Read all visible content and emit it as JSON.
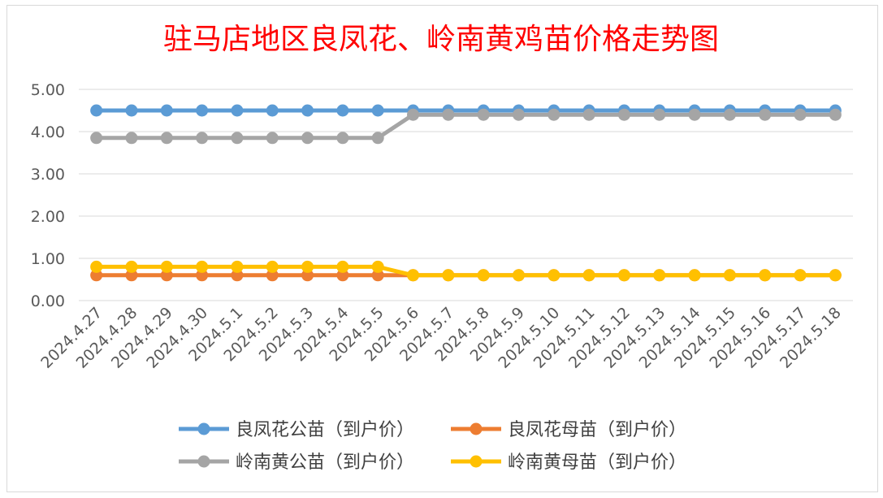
{
  "chart_data": {
    "type": "line",
    "title": "驻马店地区良凤花、岭南黄鸡苗价格走势图",
    "categories": [
      "2024.4.27",
      "2024.4.28",
      "2024.4.29",
      "2024.4.30",
      "2024.5.1",
      "2024.5.2",
      "2024.5.3",
      "2024.5.4",
      "2024.5.5",
      "2024.5.6",
      "2024.5.7",
      "2024.5.8",
      "2024.5.9",
      "2024.5.10",
      "2024.5.11",
      "2024.5.12",
      "2024.5.13",
      "2024.5.14",
      "2024.5.15",
      "2024.5.16",
      "2024.5.17",
      "2024.5.18"
    ],
    "series": [
      {
        "name": "良凤花公苗（到户价）",
        "color": "#5b9bd5",
        "values": [
          4.5,
          4.5,
          4.5,
          4.5,
          4.5,
          4.5,
          4.5,
          4.5,
          4.5,
          4.5,
          4.5,
          4.5,
          4.5,
          4.5,
          4.5,
          4.5,
          4.5,
          4.5,
          4.5,
          4.5,
          4.5,
          4.5
        ]
      },
      {
        "name": "良凤花母苗（到户价）",
        "color": "#ed7d31",
        "values": [
          0.6,
          0.6,
          0.6,
          0.6,
          0.6,
          0.6,
          0.6,
          0.6,
          0.6,
          0.6,
          0.6,
          0.6,
          0.6,
          0.6,
          0.6,
          0.6,
          0.6,
          0.6,
          0.6,
          0.6,
          0.6,
          0.6
        ]
      },
      {
        "name": "岭南黄公苗（到户价）",
        "color": "#a5a5a5",
        "values": [
          3.85,
          3.85,
          3.85,
          3.85,
          3.85,
          3.85,
          3.85,
          3.85,
          3.85,
          4.4,
          4.4,
          4.4,
          4.4,
          4.4,
          4.4,
          4.4,
          4.4,
          4.4,
          4.4,
          4.4,
          4.4,
          4.4
        ]
      },
      {
        "name": "岭南黄母苗（到户价）",
        "color": "#ffc000",
        "values": [
          0.8,
          0.8,
          0.8,
          0.8,
          0.8,
          0.8,
          0.8,
          0.8,
          0.8,
          0.6,
          0.6,
          0.6,
          0.6,
          0.6,
          0.6,
          0.6,
          0.6,
          0.6,
          0.6,
          0.6,
          0.6,
          0.6
        ]
      }
    ],
    "ylim": [
      0,
      5
    ],
    "yticks": [
      "0.00",
      "1.00",
      "2.00",
      "3.00",
      "4.00",
      "5.00"
    ],
    "grid": true,
    "legend_position": "bottom",
    "title_color": "#ff0000"
  }
}
